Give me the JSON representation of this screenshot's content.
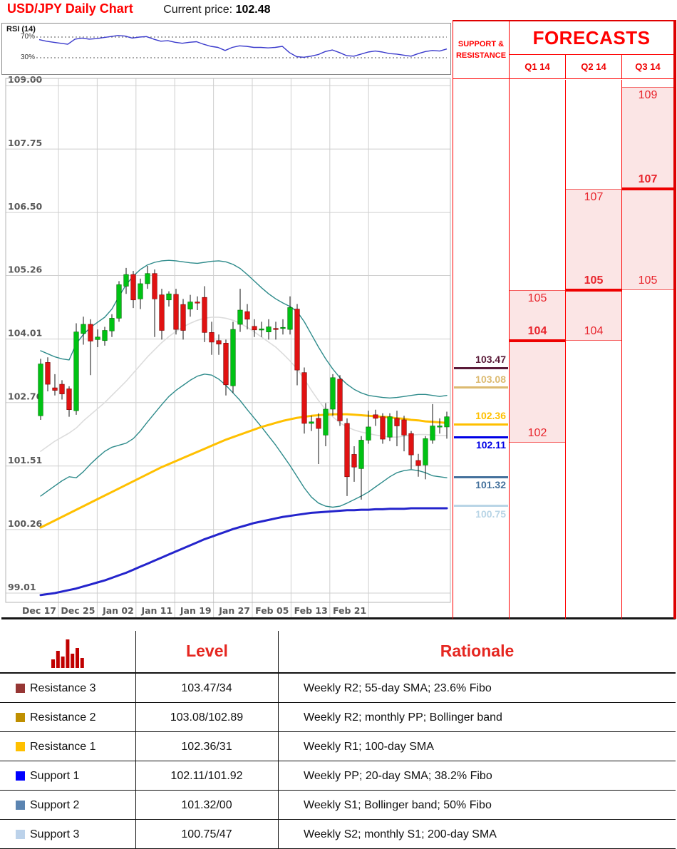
{
  "header": {
    "title": "USD/JPY Daily Chart",
    "price_label": "Current price:",
    "price_value": "102.48"
  },
  "rsi_panel": {
    "label": "RSI (14)",
    "upper_label": "70%",
    "lower_label": "30%",
    "upper_level": 70,
    "lower_level": 30,
    "line_color": "#3a3acc",
    "values": [
      65,
      62,
      60,
      58,
      56,
      66,
      68,
      66,
      67,
      69,
      71,
      73,
      72,
      68,
      70,
      71,
      66,
      62,
      63,
      60,
      58,
      60,
      61,
      56,
      52,
      50,
      44,
      50,
      53,
      52,
      50,
      50,
      49,
      50,
      52,
      40,
      32,
      31,
      33,
      36,
      42,
      45,
      40,
      34,
      33,
      37,
      41,
      43,
      41,
      38,
      37,
      35,
      33,
      38,
      42,
      44,
      43,
      47
    ]
  },
  "chart_data": {
    "type": "candlestick",
    "title": "USD/JPY Daily Chart",
    "y_ticks": [
      "109.00",
      "107.75",
      "106.50",
      "105.26",
      "104.01",
      "102.76",
      "101.51",
      "100.26",
      "99.01"
    ],
    "x_ticks": [
      "Dec 17",
      "Dec 25",
      "Jan 02",
      "Jan 11",
      "Jan 19",
      "Jan 27",
      "Feb 05",
      "Feb 13",
      "Feb 21"
    ],
    "ylim": [
      98.8,
      109.3
    ],
    "grid": true,
    "candles_ohlc": [
      [
        102.5,
        103.62,
        102.42,
        103.52
      ],
      [
        103.55,
        103.65,
        102.98,
        103.12
      ],
      [
        103.05,
        103.32,
        102.9,
        103.0
      ],
      [
        103.12,
        103.2,
        102.82,
        102.93
      ],
      [
        103.03,
        103.08,
        102.48,
        102.62
      ],
      [
        102.6,
        104.32,
        102.52,
        104.15
      ],
      [
        104.12,
        104.45,
        103.9,
        104.3
      ],
      [
        104.3,
        104.4,
        103.3,
        103.97
      ],
      [
        104.0,
        104.2,
        103.85,
        104.05
      ],
      [
        103.98,
        104.25,
        103.88,
        104.18
      ],
      [
        104.17,
        104.5,
        104.05,
        104.42
      ],
      [
        104.42,
        105.15,
        104.35,
        105.08
      ],
      [
        105.05,
        105.41,
        104.9,
        105.28
      ],
      [
        105.28,
        105.35,
        104.62,
        104.78
      ],
      [
        104.8,
        105.2,
        104.6,
        105.1
      ],
      [
        105.1,
        105.45,
        105.0,
        105.3
      ],
      [
        105.3,
        105.38,
        104.05,
        104.8
      ],
      [
        104.88,
        105.0,
        104.0,
        104.18
      ],
      [
        104.78,
        104.95,
        104.65,
        104.9
      ],
      [
        104.89,
        105.0,
        104.1,
        104.2
      ],
      [
        104.69,
        104.8,
        104.0,
        104.18
      ],
      [
        104.6,
        104.88,
        104.45,
        104.74
      ],
      [
        104.74,
        104.85,
        104.58,
        104.72
      ],
      [
        104.83,
        105.05,
        103.95,
        104.14
      ],
      [
        104.14,
        104.35,
        103.7,
        103.95
      ],
      [
        103.98,
        104.1,
        103.7,
        103.91
      ],
      [
        103.93,
        104.0,
        102.9,
        103.11
      ],
      [
        103.09,
        104.35,
        102.95,
        104.2
      ],
      [
        104.3,
        105.0,
        104.15,
        104.58
      ],
      [
        104.55,
        104.7,
        104.2,
        104.4
      ],
      [
        104.26,
        104.4,
        104.05,
        104.19
      ],
      [
        104.2,
        104.35,
        104.05,
        104.21
      ],
      [
        104.15,
        104.4,
        104.0,
        104.25
      ],
      [
        104.22,
        104.35,
        104.0,
        104.2
      ],
      [
        104.22,
        104.4,
        104.1,
        104.24
      ],
      [
        104.2,
        104.85,
        104.1,
        104.63
      ],
      [
        104.6,
        104.7,
        103.1,
        103.4
      ],
      [
        103.35,
        103.45,
        102.15,
        102.35
      ],
      [
        102.35,
        102.5,
        102.2,
        102.38
      ],
      [
        102.45,
        102.55,
        101.55,
        102.25
      ],
      [
        102.12,
        102.75,
        101.9,
        102.63
      ],
      [
        102.63,
        103.32,
        102.5,
        103.25
      ],
      [
        103.22,
        103.3,
        102.3,
        102.4
      ],
      [
        102.35,
        102.45,
        100.92,
        101.3
      ],
      [
        101.74,
        101.9,
        101.2,
        101.49
      ],
      [
        101.46,
        102.1,
        100.85,
        102.02
      ],
      [
        102.02,
        102.6,
        101.95,
        102.28
      ],
      [
        102.52,
        102.62,
        102.3,
        102.45
      ],
      [
        102.48,
        102.55,
        101.95,
        102.04
      ],
      [
        102.08,
        102.55,
        102.0,
        102.48
      ],
      [
        102.45,
        102.6,
        101.9,
        102.3
      ],
      [
        102.42,
        102.5,
        101.8,
        102.12
      ],
      [
        102.15,
        102.2,
        101.45,
        101.73
      ],
      [
        101.62,
        101.75,
        101.3,
        101.52
      ],
      [
        101.53,
        102.1,
        101.25,
        102.05
      ],
      [
        102.02,
        102.73,
        101.95,
        102.3
      ],
      [
        102.28,
        102.45,
        102.15,
        102.3
      ],
      [
        102.28,
        102.58,
        102.05,
        102.48
      ]
    ],
    "overlays": {
      "bollinger_upper": [
        103.78,
        103.72,
        103.66,
        103.62,
        103.6,
        103.92,
        104.1,
        104.24,
        104.34,
        104.44,
        104.6,
        104.85,
        105.08,
        105.25,
        105.38,
        105.47,
        105.52,
        105.55,
        105.56,
        105.55,
        105.53,
        105.51,
        105.5,
        105.52,
        105.54,
        105.55,
        105.53,
        105.48,
        105.4,
        105.28,
        105.15,
        105.02,
        104.9,
        104.8,
        104.72,
        104.65,
        104.55,
        104.35,
        104.1,
        103.85,
        103.62,
        103.42,
        103.25,
        103.12,
        103.02,
        102.95,
        102.9,
        102.88,
        102.86,
        102.85,
        102.86,
        102.88,
        102.9,
        102.92,
        102.92,
        102.9,
        102.88,
        102.9
      ],
      "bollinger_lower": [
        100.92,
        101.02,
        101.12,
        101.22,
        101.3,
        101.28,
        101.4,
        101.55,
        101.68,
        101.8,
        101.88,
        101.92,
        101.96,
        102.05,
        102.2,
        102.38,
        102.55,
        102.72,
        102.88,
        103.0,
        103.1,
        103.2,
        103.28,
        103.32,
        103.3,
        103.22,
        103.1,
        102.95,
        102.8,
        102.62,
        102.45,
        102.28,
        102.1,
        101.92,
        101.72,
        101.52,
        101.3,
        101.08,
        100.9,
        100.78,
        100.72,
        100.7,
        100.72,
        100.78,
        100.85,
        100.92,
        101.0,
        101.1,
        101.2,
        101.3,
        101.38,
        101.42,
        101.44,
        101.42,
        101.38,
        101.32,
        101.3,
        101.28
      ],
      "sma_20": [
        101.8,
        101.9,
        102.0,
        102.08,
        102.16,
        102.26,
        102.4,
        102.52,
        102.64,
        102.76,
        102.9,
        103.04,
        103.18,
        103.34,
        103.5,
        103.66,
        103.8,
        103.94,
        104.06,
        104.16,
        104.25,
        104.32,
        104.38,
        104.42,
        104.44,
        104.44,
        104.42,
        104.38,
        104.32,
        104.24,
        104.15,
        104.05,
        103.95,
        103.85,
        103.72,
        103.58,
        103.42,
        103.22,
        103.0,
        102.8,
        102.62,
        102.48,
        102.36,
        102.28,
        102.22,
        102.18,
        102.15,
        102.12,
        102.1,
        102.08,
        102.08,
        102.1,
        102.12,
        102.13,
        102.13,
        102.12,
        102.11,
        102.11
      ],
      "sma_100": [
        100.3,
        100.37,
        100.44,
        100.51,
        100.58,
        100.65,
        100.72,
        100.79,
        100.86,
        100.93,
        101.0,
        101.07,
        101.14,
        101.21,
        101.28,
        101.35,
        101.42,
        101.49,
        101.55,
        101.61,
        101.67,
        101.73,
        101.79,
        101.85,
        101.91,
        101.97,
        102.03,
        102.08,
        102.13,
        102.18,
        102.23,
        102.28,
        102.32,
        102.36,
        102.4,
        102.43,
        102.46,
        102.48,
        102.5,
        102.51,
        102.52,
        102.53,
        102.53,
        102.53,
        102.52,
        102.51,
        102.5,
        102.49,
        102.48,
        102.47,
        102.45,
        102.44,
        102.42,
        102.41,
        102.39,
        102.38,
        102.37,
        102.36
      ],
      "sma_200": [
        98.97,
        98.99,
        99.01,
        99.04,
        99.07,
        99.1,
        99.14,
        99.18,
        99.22,
        99.26,
        99.31,
        99.36,
        99.41,
        99.47,
        99.53,
        99.59,
        99.65,
        99.71,
        99.77,
        99.83,
        99.89,
        99.95,
        100.01,
        100.07,
        100.12,
        100.17,
        100.22,
        100.27,
        100.31,
        100.35,
        100.39,
        100.42,
        100.45,
        100.48,
        100.51,
        100.53,
        100.55,
        100.57,
        100.59,
        100.6,
        100.61,
        100.62,
        100.63,
        100.64,
        100.64,
        100.65,
        100.65,
        100.66,
        100.66,
        100.67,
        100.67,
        100.67,
        100.68,
        100.68,
        100.68,
        100.68,
        100.68,
        100.68
      ]
    },
    "colors": {
      "candle_up": "#00c214",
      "candle_up_stroke": "#006e00",
      "candle_down": "#e01212",
      "candle_down_stroke": "#7a0000",
      "wick": "#111111",
      "bollinger": "#2e8b8b",
      "sma_20": "#dcdcdc",
      "sma_100": "#ffc000",
      "sma_200": "#2424cc",
      "grid": "#cfcfcf",
      "axis_text": "#595959"
    }
  },
  "support_resistance": {
    "header": "SUPPORT & RESISTANCE",
    "levels": [
      {
        "label": "103.47",
        "price": 103.47,
        "color": "#5a1a38",
        "side": "resistance"
      },
      {
        "label": "103.08",
        "price": 103.08,
        "color": "#dcba70",
        "side": "resistance"
      },
      {
        "label": "102.36",
        "price": 102.36,
        "color": "#ffc000",
        "side": "resistance"
      },
      {
        "label": "102.11",
        "price": 102.11,
        "color": "#0000e6",
        "side": "support"
      },
      {
        "label": "101.32",
        "price": 101.32,
        "color": "#44719c",
        "side": "support"
      },
      {
        "label": "100.75",
        "price": 100.75,
        "color": "#b9d5e6",
        "side": "support"
      }
    ]
  },
  "forecasts": {
    "title": "FORECASTS",
    "fill_color": "#fbe5e5",
    "border_color": "#ff0000",
    "columns": [
      {
        "label": "Q1 14",
        "range_top": 105,
        "range_top_label": "105",
        "forecast": 104,
        "forecast_label": "104",
        "range_bottom": 102,
        "range_bottom_label": "102"
      },
      {
        "label": "Q2 14",
        "range_top": 107,
        "range_top_label": "107",
        "forecast": 105,
        "forecast_label": "105",
        "range_bottom": 104,
        "range_bottom_label": "104"
      },
      {
        "label": "Q3 14",
        "range_top": 109,
        "range_top_label": "109",
        "forecast": 107,
        "forecast_label": "107",
        "range_bottom": 105,
        "range_bottom_label": "105"
      }
    ]
  },
  "table": {
    "header_level": "Level",
    "header_rationale": "Rationale",
    "icon_color": "#c00000",
    "rows": [
      {
        "swatch": "#963634",
        "name": "Resistance 3",
        "level": "103.47/34",
        "rationale": "Weekly R2; 55-day SMA; 23.6% Fibo"
      },
      {
        "swatch": "#bf8f00",
        "name": "Resistance 2",
        "level": "103.08/102.89",
        "rationale": "Weekly R2; monthly PP; Bollinger band"
      },
      {
        "swatch": "#ffc000",
        "name": "Resistance 1",
        "level": "102.36/31",
        "rationale": "Weekly R1; 100-day SMA"
      },
      {
        "swatch": "#0000ff",
        "name": "Support 1",
        "level": "102.11/101.92",
        "rationale": "Weekly PP; 20-day SMA; 38.2% Fibo"
      },
      {
        "swatch": "#5b84b1",
        "name": "Support 2",
        "level": "101.32/00",
        "rationale": "Weekly S1; Bollinger band; 50% Fibo"
      },
      {
        "swatch": "#bcd2ea",
        "name": "Support 3",
        "level": "100.75/47",
        "rationale": "Weekly S2; monthly S1; 200-day SMA"
      }
    ]
  }
}
